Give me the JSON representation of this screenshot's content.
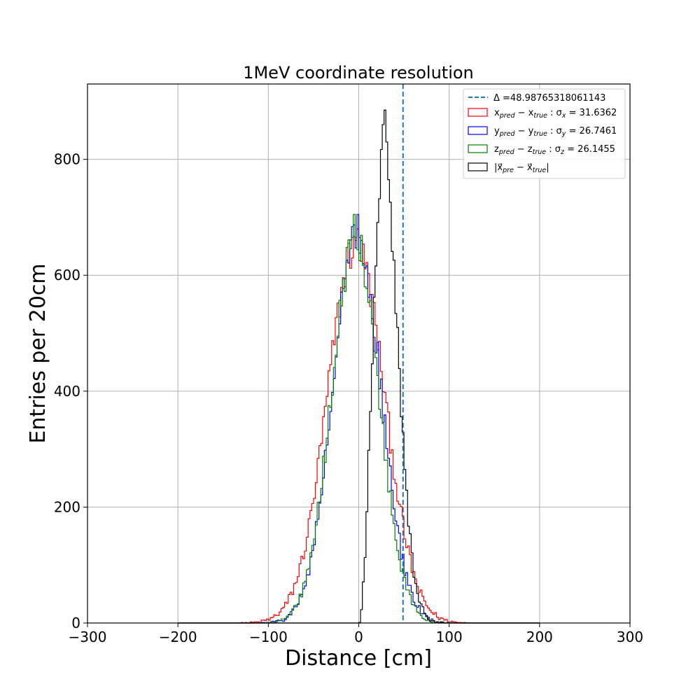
{
  "chart_data": {
    "type": "histogram",
    "title": "1MeV coordinate resolution",
    "xlabel": "Distance [cm]",
    "ylabel": "Entries per 20cm",
    "xlim": [
      -300,
      300
    ],
    "ylim": [
      0,
      930
    ],
    "grid": true,
    "legend_position": "top-right",
    "x_ticks": [
      -300,
      -200,
      -100,
      0,
      100,
      200,
      300
    ],
    "x_tick_labels": [
      "−300",
      "−200",
      "−100",
      "0",
      "100",
      "200",
      "300"
    ],
    "y_ticks": [
      0,
      200,
      400,
      600,
      800
    ],
    "y_tick_labels": [
      "0",
      "200",
      "400",
      "600",
      "800"
    ],
    "delta_line": {
      "x": 48.98765318061143,
      "color": "#1f77b4",
      "legend": "Δ =48.98765318061143"
    },
    "bin_edges_range": [
      -200,
      200
    ],
    "bin_width": 2,
    "series": [
      {
        "legend_main": "x",
        "legend_sub1": "pred",
        "legend_mid": " − x",
        "legend_sub2": "true",
        "legend_sep": " :  σ",
        "legend_sub3": "x",
        "legend_value": " = 31.6362",
        "color": "#ff0000",
        "profile": {
          "type": "gaussian",
          "peak": 650,
          "mean": -3,
          "sigma": 31.6
        },
        "peaks": [
          {
            "x": -4,
            "y": 660
          },
          {
            "x": -2,
            "y": 680
          },
          {
            "x": 0,
            "y": 665
          }
        ]
      },
      {
        "legend_main": "y",
        "legend_sub1": "pred",
        "legend_mid": " − y",
        "legend_sub2": "true",
        "legend_sep": " :  σ",
        "legend_sub3": "y",
        "legend_value": " = 26.7461",
        "color": "#0000ff",
        "profile": {
          "type": "gaussian",
          "peak": 665,
          "mean": -2,
          "sigma": 26.7
        },
        "peaks": [
          {
            "x": -2,
            "y": 705
          },
          {
            "x": 2,
            "y": 660
          }
        ]
      },
      {
        "legend_main": "z",
        "legend_sub1": "pred",
        "legend_mid": " − z",
        "legend_sub2": "true",
        "legend_sep": " :  σ",
        "legend_sub3": "z",
        "legend_value": " = 26.1455",
        "color": "#008000",
        "profile": {
          "type": "gaussian",
          "peak": 660,
          "mean": -4,
          "sigma": 26.1
        },
        "peaks": [
          {
            "x": -6,
            "y": 705
          },
          {
            "x": -4,
            "y": 665
          }
        ]
      },
      {
        "legend_main": "|x⃗",
        "legend_sub1": "pre",
        "legend_mid": " − x⃗",
        "legend_sub2": "true",
        "legend_sep": "|",
        "legend_sub3": "",
        "legend_value": "",
        "color": "#000000",
        "profile": {
          "type": "maxwell",
          "peak": 800,
          "mode": 28
        },
        "peaks": [
          {
            "x": 28,
            "y": 885
          },
          {
            "x": 26,
            "y": 860
          },
          {
            "x": 30,
            "y": 830
          }
        ]
      }
    ]
  }
}
